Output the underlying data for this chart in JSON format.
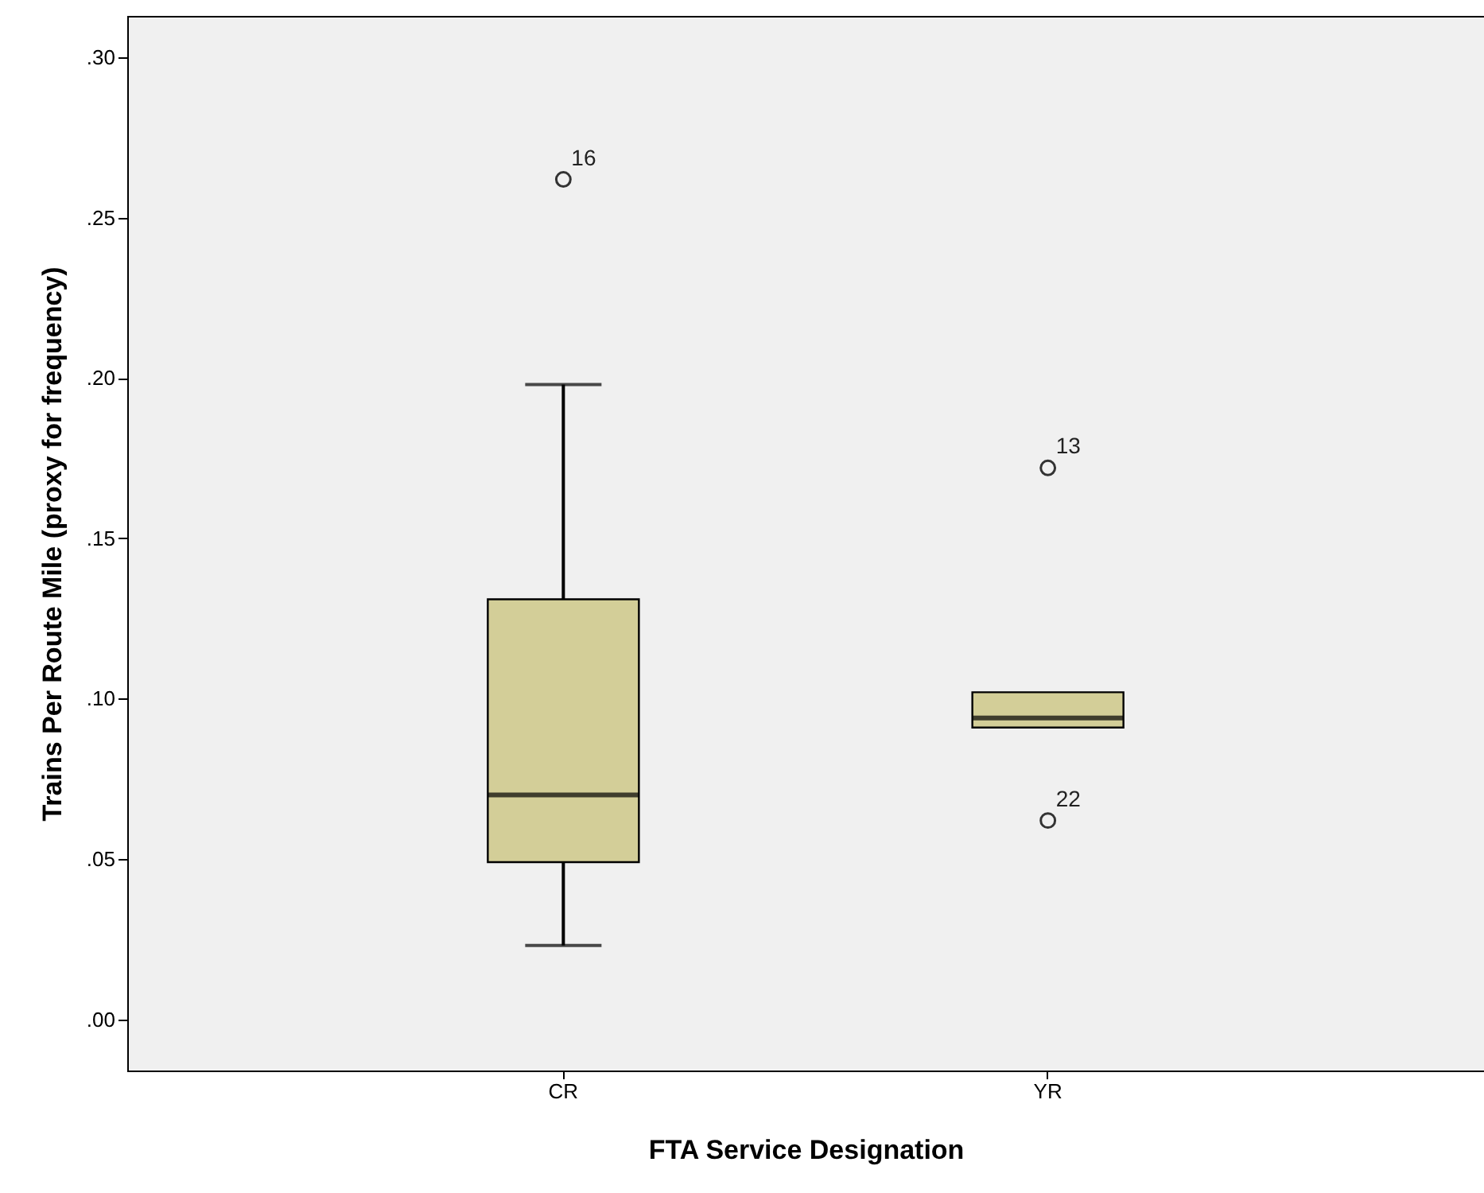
{
  "chart_data": {
    "type": "box",
    "xlabel": "FTA Service Designation",
    "ylabel": "Trains Per Route Mile (proxy for frequency)",
    "categories": [
      "CR",
      "YR"
    ],
    "boxes": [
      {
        "low": 0.023,
        "q1": 0.049,
        "median": 0.07,
        "q3": 0.131,
        "high": 0.198
      },
      {
        "low": 0.091,
        "q1": 0.091,
        "median": 0.094,
        "q3": 0.102,
        "high": 0.102
      }
    ],
    "series": [
      {
        "type": "scatter",
        "x": [
          "CR",
          "YR",
          "YR"
        ],
        "values": [
          0.262,
          0.172,
          0.062
        ],
        "color": "#333333"
      }
    ],
    "marker": "circle",
    "color": "#d3ce98",
    "ylim": [
      -0.016,
      0.313
    ],
    "yticks": [
      {
        "value": 0,
        "label": ".00"
      },
      {
        "value": 0.05,
        "label": ".05"
      },
      {
        "value": 0.1,
        "label": ".10"
      },
      {
        "value": 0.15,
        "label": ".15"
      },
      {
        "value": 0.2,
        "label": ".20"
      },
      {
        "value": 0.25,
        "label": ".25"
      },
      {
        "value": 0.3,
        "label": ".30"
      }
    ],
    "annotations": [
      {
        "text": "16",
        "x": "CR",
        "y": 0.262
      },
      {
        "text": "13",
        "x": "YR",
        "y": 0.172
      },
      {
        "text": "22",
        "x": "YR",
        "y": 0.062
      }
    ],
    "grid": false
  }
}
